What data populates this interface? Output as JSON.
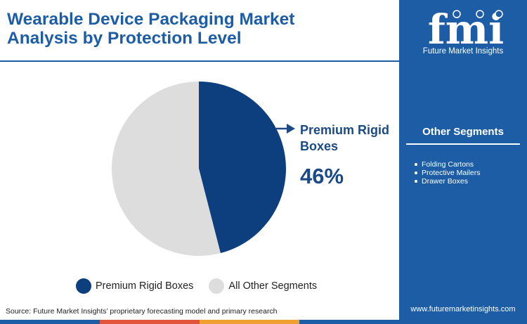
{
  "header": {
    "title": "Wearable Device Packaging Market\nAnalysis by Protection Level"
  },
  "chart_data": {
    "type": "pie",
    "title": "Wearable Device Packaging Market Analysis by Protection Level",
    "slices": [
      {
        "name": "Premium Rigid Boxes",
        "value": 46,
        "color": "#0d3f7f"
      },
      {
        "name": "All Other Segments",
        "value": 54,
        "color": "#dddddd"
      }
    ],
    "callout": {
      "label": "Premium Rigid Boxes",
      "value_text": "46%"
    },
    "legend_position": "bottom"
  },
  "legend": [
    {
      "label": "Premium Rigid Boxes",
      "color": "#0d3f7f"
    },
    {
      "label": "All Other Segments",
      "color": "#dddddd"
    }
  ],
  "source": "Source: Future Market Insights’ proprietary forecasting model and primary research",
  "sidebar": {
    "logo_text": "fmi",
    "logo_tagline": "Future Market Insights",
    "segments_title": "Other Segments",
    "segments": [
      "Folding Cartons",
      "Protective Mailers",
      "Drawer Boxes"
    ],
    "website": "www.futuremarketinsights.com"
  },
  "colors": {
    "accent": "#1d5da6",
    "primary_slice": "#0d3f7f",
    "secondary_slice": "#dddddd",
    "footer_stripes": [
      "#1d5da6",
      "#e2553d",
      "#f0a030",
      "#1d5da6"
    ]
  }
}
